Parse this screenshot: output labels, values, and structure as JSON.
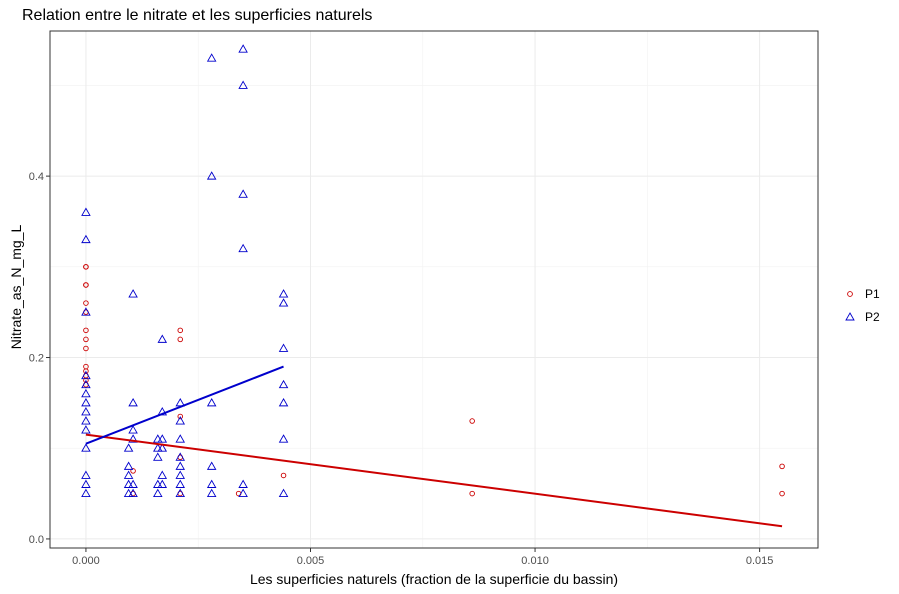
{
  "chart_data": {
    "type": "scatter",
    "title": "Relation entre le nitrate et les superficies naturels",
    "xlabel": "Les superficies naturels (fraction de la superficie du bassin)",
    "ylabel": "Nitrate_as_N_mg_L",
    "xlim": [
      -0.0008,
      0.0163
    ],
    "ylim": [
      -0.01,
      0.56
    ],
    "x_ticks": [
      0,
      0.005,
      0.01,
      0.015
    ],
    "x_tick_labels": [
      "0.000",
      "0.005",
      "0.010",
      "0.015"
    ],
    "y_ticks": [
      0,
      0.2,
      0.4
    ],
    "y_tick_labels": [
      "0.0",
      "0.2",
      "0.4"
    ],
    "grid": true,
    "legend_position": "right",
    "series": [
      {
        "name": "P1",
        "marker": "circle",
        "color": "#cc0000",
        "points": [
          [
            0,
            0.3
          ],
          [
            0,
            0.3
          ],
          [
            0,
            0.28
          ],
          [
            0,
            0.28
          ],
          [
            0,
            0.26
          ],
          [
            0,
            0.25
          ],
          [
            0,
            0.23
          ],
          [
            0,
            0.22
          ],
          [
            0,
            0.21
          ],
          [
            0,
            0.19
          ],
          [
            0,
            0.185
          ],
          [
            0,
            0.18
          ],
          [
            0,
            0.175
          ],
          [
            0,
            0.17
          ],
          [
            0.00105,
            0.075
          ],
          [
            0.00105,
            0.05
          ],
          [
            0.0021,
            0.23
          ],
          [
            0.0021,
            0.22
          ],
          [
            0.0021,
            0.135
          ],
          [
            0.0021,
            0.09
          ],
          [
            0.0021,
            0.05
          ],
          [
            0.0034,
            0.05
          ],
          [
            0.0044,
            0.07
          ],
          [
            0.0086,
            0.13
          ],
          [
            0.0086,
            0.05
          ],
          [
            0.0155,
            0.08
          ],
          [
            0.0155,
            0.05
          ]
        ],
        "trend": {
          "x": [
            0,
            0.0155
          ],
          "y": [
            0.115,
            0.014
          ]
        }
      },
      {
        "name": "P2",
        "marker": "triangle",
        "color": "#0000cc",
        "points": [
          [
            0,
            0.36
          ],
          [
            0,
            0.33
          ],
          [
            0,
            0.25
          ],
          [
            0,
            0.18
          ],
          [
            0,
            0.17
          ],
          [
            0,
            0.16
          ],
          [
            0,
            0.15
          ],
          [
            0,
            0.14
          ],
          [
            0,
            0.13
          ],
          [
            0,
            0.12
          ],
          [
            0,
            0.1
          ],
          [
            0,
            0.07
          ],
          [
            0,
            0.06
          ],
          [
            0,
            0.05
          ],
          [
            0.00095,
            0.1
          ],
          [
            0.00095,
            0.08
          ],
          [
            0.00095,
            0.07
          ],
          [
            0.00095,
            0.06
          ],
          [
            0.00095,
            0.05
          ],
          [
            0.00105,
            0.27
          ],
          [
            0.00105,
            0.15
          ],
          [
            0.00105,
            0.12
          ],
          [
            0.00105,
            0.11
          ],
          [
            0.00105,
            0.06
          ],
          [
            0.00105,
            0.05
          ],
          [
            0.0016,
            0.11
          ],
          [
            0.0016,
            0.1
          ],
          [
            0.0016,
            0.09
          ],
          [
            0.0016,
            0.06
          ],
          [
            0.0016,
            0.05
          ],
          [
            0.0017,
            0.22
          ],
          [
            0.0017,
            0.14
          ],
          [
            0.0017,
            0.11
          ],
          [
            0.0017,
            0.1
          ],
          [
            0.0017,
            0.07
          ],
          [
            0.0017,
            0.06
          ],
          [
            0.0021,
            0.15
          ],
          [
            0.0021,
            0.13
          ],
          [
            0.0021,
            0.11
          ],
          [
            0.0021,
            0.09
          ],
          [
            0.0021,
            0.08
          ],
          [
            0.0021,
            0.07
          ],
          [
            0.0021,
            0.06
          ],
          [
            0.0021,
            0.05
          ],
          [
            0.0028,
            0.53
          ],
          [
            0.0028,
            0.4
          ],
          [
            0.0028,
            0.15
          ],
          [
            0.0028,
            0.08
          ],
          [
            0.0028,
            0.06
          ],
          [
            0.0028,
            0.05
          ],
          [
            0.0035,
            0.54
          ],
          [
            0.0035,
            0.5
          ],
          [
            0.0035,
            0.38
          ],
          [
            0.0035,
            0.32
          ],
          [
            0.0035,
            0.06
          ],
          [
            0.0035,
            0.05
          ],
          [
            0.0044,
            0.27
          ],
          [
            0.0044,
            0.26
          ],
          [
            0.0044,
            0.21
          ],
          [
            0.0044,
            0.17
          ],
          [
            0.0044,
            0.15
          ],
          [
            0.0044,
            0.11
          ],
          [
            0.0044,
            0.05
          ]
        ],
        "trend": {
          "x": [
            0,
            0.0044
          ],
          "y": [
            0.105,
            0.19
          ]
        }
      }
    ]
  }
}
